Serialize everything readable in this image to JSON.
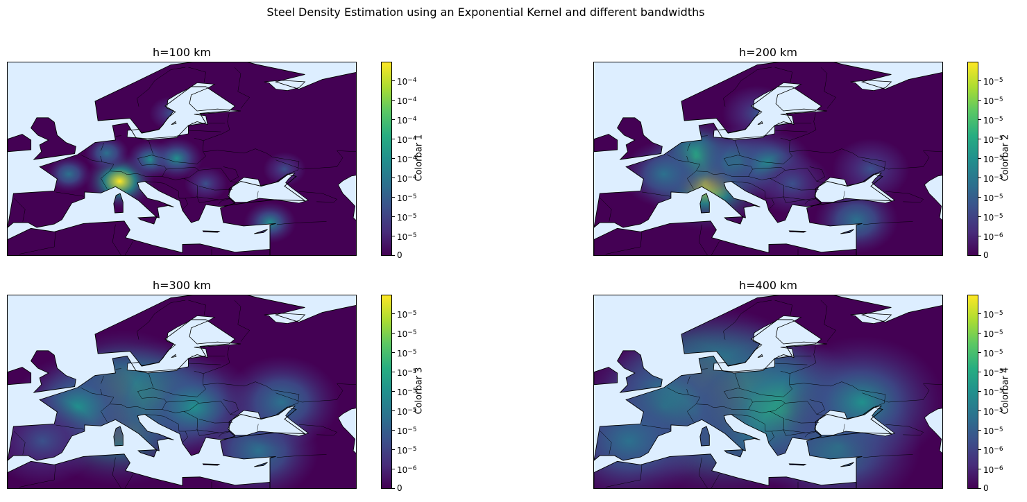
{
  "figure": {
    "title": "Steel Density Estimation using an Exponential Kernel and different bandwidths"
  },
  "colors": {
    "ocean": "#ddeeff",
    "low_density": "#440154",
    "colormap": "viridis"
  },
  "panels": [
    {
      "title": "h=100 km",
      "colorbar_label": "Colorbar 1",
      "ticks": [
        "10^-4",
        "10^-4",
        "10^-4",
        "10^-4",
        "10^-4",
        "10^-4",
        "10^-5",
        "10^-5",
        "10^-5",
        "0"
      ],
      "hotspots": [
        {
          "lon": 9.2,
          "lat": 45.5,
          "level": 1.0
        },
        {
          "lon": 14.5,
          "lat": 50.0,
          "level": 0.45
        },
        {
          "lon": 19.0,
          "lat": 50.2,
          "level": 0.55
        },
        {
          "lon": 7.0,
          "lat": 51.3,
          "level": 0.35
        },
        {
          "lon": 35.0,
          "lat": 37.0,
          "level": 0.55
        },
        {
          "lon": 18.0,
          "lat": 59.5,
          "level": 0.3
        },
        {
          "lon": 0.5,
          "lat": 47.0,
          "level": 0.35
        },
        {
          "lon": 37.5,
          "lat": 48.0,
          "level": 0.3
        },
        {
          "lon": 24.0,
          "lat": 45.0,
          "level": 0.3
        }
      ]
    },
    {
      "title": "h=200 km",
      "colorbar_label": "Colorbar 2",
      "ticks": [
        "10^-5",
        "10^-5",
        "10^-5",
        "10^-5",
        "10^-5",
        "10^-5",
        "10^-5",
        "10^-5",
        "10^-6",
        "0"
      ],
      "hotspots": [
        {
          "lon": 9.2,
          "lat": 45.5,
          "level": 1.0
        },
        {
          "lon": 7.5,
          "lat": 50.5,
          "level": 0.6
        },
        {
          "lon": 15.0,
          "lat": 49.5,
          "level": 0.5
        },
        {
          "lon": 20.0,
          "lat": 49.0,
          "level": 0.45
        },
        {
          "lon": 35.0,
          "lat": 37.5,
          "level": 0.4
        },
        {
          "lon": 37.5,
          "lat": 48.0,
          "level": 0.3
        },
        {
          "lon": 2.0,
          "lat": 47.0,
          "level": 0.4
        },
        {
          "lon": 24.0,
          "lat": 45.0,
          "level": 0.3
        },
        {
          "lon": 18.0,
          "lat": 59.5,
          "level": 0.2
        }
      ]
    },
    {
      "title": "h=300 km",
      "colorbar_label": "Colorbar 3",
      "ticks": [
        "10^-5",
        "10^-5",
        "10^-5",
        "10^-5",
        "10^-5",
        "10^-5",
        "10^-5",
        "10^-5",
        "10^-6",
        "0"
      ],
      "hotspots": [
        {
          "lon": 9.2,
          "lat": 45.5,
          "level": 1.0
        },
        {
          "lon": 10.0,
          "lat": 50.0,
          "level": 0.75
        },
        {
          "lon": 16.0,
          "lat": 49.0,
          "level": 0.6
        },
        {
          "lon": 22.0,
          "lat": 47.0,
          "level": 0.5
        },
        {
          "lon": 2.0,
          "lat": 47.0,
          "level": 0.5
        },
        {
          "lon": 33.0,
          "lat": 38.0,
          "level": 0.4
        },
        {
          "lon": 37.0,
          "lat": 48.0,
          "level": 0.35
        },
        {
          "lon": -4.0,
          "lat": 40.0,
          "level": 0.3
        }
      ]
    },
    {
      "title": "h=400 km",
      "colorbar_label": "Colorbar 4",
      "ticks": [
        "10^-5",
        "10^-5",
        "10^-5",
        "10^-5",
        "10^-5",
        "10^-5",
        "10^-5",
        "10^-6",
        "10^-6",
        "0"
      ],
      "hotspots": [
        {
          "lon": 12.0,
          "lat": 47.5,
          "level": 1.0
        },
        {
          "lon": 10.0,
          "lat": 50.0,
          "level": 0.85
        },
        {
          "lon": 17.0,
          "lat": 48.0,
          "level": 0.75
        },
        {
          "lon": 23.0,
          "lat": 46.0,
          "level": 0.6
        },
        {
          "lon": 2.0,
          "lat": 47.0,
          "level": 0.55
        },
        {
          "lon": 32.0,
          "lat": 39.0,
          "level": 0.45
        },
        {
          "lon": 36.0,
          "lat": 48.0,
          "level": 0.45
        },
        {
          "lon": -4.0,
          "lat": 40.0,
          "level": 0.35
        }
      ]
    }
  ],
  "map_extent": {
    "lon_min": -10,
    "lon_max": 50,
    "lat_min": 30,
    "lat_max": 70
  }
}
